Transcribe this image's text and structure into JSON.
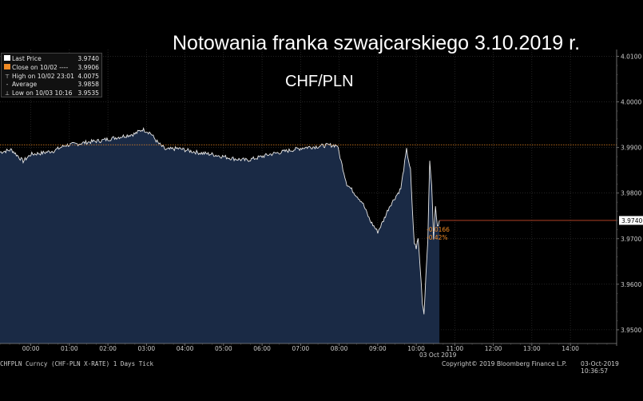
{
  "title": "Notowania franka szwajcarskiego 3.10.2019 r.",
  "subtitle": "CHF/PLN",
  "legend": [
    {
      "label": "Last Price",
      "value": "3.9740",
      "symbol": "square-white"
    },
    {
      "label": "Close on 10/02 ----",
      "value": "3.9906",
      "symbol": "square-orange"
    },
    {
      "label": "High on 10/02 23:01",
      "value": "4.0075",
      "symbol": "up-tick"
    },
    {
      "label": "Average",
      "value": "3.9858",
      "symbol": "dash"
    },
    {
      "label": "Low on 10/03 10:16",
      "value": "3.9535",
      "symbol": "down-tick"
    }
  ],
  "change_labels": {
    "abs": "-0.0166",
    "pct": "-0.42%"
  },
  "last_price_tag": "3.9740",
  "footer": {
    "left": "CHFPLN Curncy (CHF-PLN X-RATE) 1 Days Tick",
    "date_label": "03 Oct 2019",
    "copyright": "Copyright© 2019 Bloomberg Finance L.P.",
    "timestamp": "03-Oct-2019 10:36:57"
  },
  "colors": {
    "background": "#000000",
    "area_fill": "#1a2a45",
    "price_line": "#e8e8e8",
    "close_line": "#f08a24",
    "grid": "#3a3a3a"
  },
  "chart_data": {
    "type": "area",
    "x_ticks": [
      "00:00",
      "01:00",
      "02:00",
      "03:00",
      "04:00",
      "05:00",
      "06:00",
      "07:00",
      "08:00",
      "09:00",
      "10:00",
      "11:00",
      "12:00",
      "13:00",
      "14:00"
    ],
    "y_ticks": [
      "4.0100",
      "4.0000",
      "3.9900",
      "3.9800",
      "3.9700",
      "3.9600",
      "3.9500"
    ],
    "ylim": [
      3.947,
      4.0115
    ],
    "xlim_hours": [
      -0.8,
      15.2
    ],
    "close_value": 3.9906,
    "last_value": 3.974,
    "series": [
      {
        "x_hours": [
          -0.8,
          -0.5,
          -0.2,
          0.0,
          0.3,
          0.6,
          0.9,
          1.2,
          1.5,
          1.8,
          2.1,
          2.4,
          2.7,
          2.9,
          3.1,
          3.3,
          3.5,
          3.8,
          4.1,
          4.4,
          4.7,
          5.0,
          5.3,
          5.6,
          5.9,
          6.2,
          6.5,
          6.8,
          7.1,
          7.4,
          7.7,
          7.95,
          8.05,
          8.2,
          8.4,
          8.6,
          8.8,
          9.0,
          9.15,
          9.3,
          9.45,
          9.6,
          9.75,
          9.85,
          9.9,
          9.95,
          10.0,
          10.05,
          10.1,
          10.16,
          10.2,
          10.25,
          10.3,
          10.35,
          10.4,
          10.45,
          10.5,
          10.55,
          10.6
        ],
        "y": [
          3.989,
          3.9895,
          3.987,
          3.9885,
          3.9888,
          3.9893,
          3.9905,
          3.9908,
          3.9912,
          3.9915,
          3.992,
          3.9925,
          3.993,
          3.994,
          3.9932,
          3.991,
          3.9895,
          3.9898,
          3.9893,
          3.9888,
          3.9885,
          3.988,
          3.9875,
          3.9872,
          3.9878,
          3.9885,
          3.989,
          3.9895,
          3.99,
          3.9902,
          3.9905,
          3.9905,
          3.987,
          3.982,
          3.98,
          3.978,
          3.974,
          3.9715,
          3.974,
          3.977,
          3.979,
          3.981,
          3.9895,
          3.985,
          3.976,
          3.969,
          3.968,
          3.97,
          3.964,
          3.956,
          3.9535,
          3.962,
          3.97,
          3.987,
          3.982,
          3.97,
          3.977,
          3.9725,
          3.974
        ]
      }
    ]
  }
}
